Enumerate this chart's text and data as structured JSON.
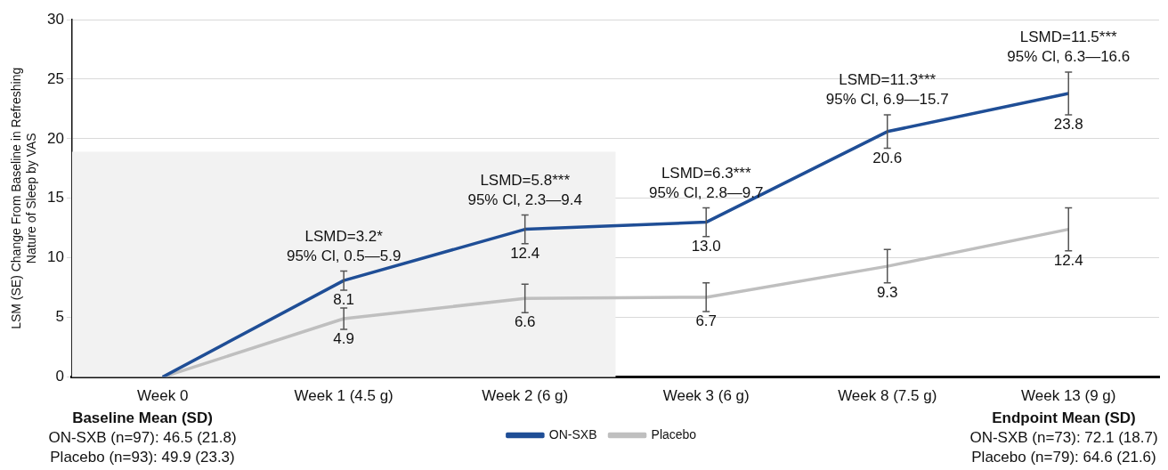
{
  "chart_data": {
    "type": "line",
    "ylabel": "LSM (SE) Change From Baseline in Refreshing Nature of Sleep by VAS",
    "categories": [
      "Week 0",
      "Week 1 (4.5 g)",
      "Week 2 (6 g)",
      "Week 3 (6 g)",
      "Week 8 (7.5 g)",
      "Week 13 (9 g)"
    ],
    "series": [
      {
        "name": "ON-SXB",
        "color": "#1f4e96",
        "values": [
          0,
          8.1,
          12.4,
          13.0,
          20.6,
          23.8
        ],
        "errors": [
          null,
          0.8,
          1.2,
          1.2,
          1.4,
          1.8
        ],
        "value_labels": [
          null,
          "8.1",
          "12.4",
          "13.0",
          "20.6",
          "23.8"
        ]
      },
      {
        "name": "Placebo",
        "color": "#bfbfbf",
        "values": [
          0,
          4.9,
          6.6,
          6.7,
          9.3,
          12.4
        ],
        "errors": [
          null,
          0.9,
          1.2,
          1.2,
          1.4,
          1.8
        ],
        "value_labels": [
          null,
          "4.9",
          "6.6",
          "6.7",
          "9.3",
          "12.4"
        ]
      }
    ],
    "ylim": [
      0,
      30
    ],
    "yticks": [
      0,
      5,
      10,
      15,
      20,
      25,
      30
    ],
    "grid": "y",
    "legend": "bottom",
    "marker": "none",
    "line_style": "solid",
    "bands": [
      {
        "axis": "x",
        "from": "Week 0",
        "to": "Week 2 (6 g)",
        "color": "#f2f2f2"
      }
    ],
    "annotations": [
      {
        "text": "LSMD=3.2*\n95% Cl, 0.5—5.9",
        "x": "Week 1 (4.5 g)",
        "y": 8.1
      },
      {
        "text": "LSMD=5.8***\n95% Cl, 2.3—9.4",
        "x": "Week 2 (6 g)",
        "y": 12.4
      },
      {
        "text": "LSMD=6.3***\n95% Cl, 2.8—9.7",
        "x": "Week 3 (6 g)",
        "y": 13.0
      },
      {
        "text": "LSMD=11.3***\n95% Cl, 6.9—15.7",
        "x": "Week 8 (7.5 g)",
        "y": 20.6
      },
      {
        "text": "LSMD=11.5***\n95% Cl, 6.3—16.6",
        "x": "Week 13 (9 g)",
        "y": 23.8
      },
      "Baseline Mean (SD)",
      "ON-SXB (n=97): 46.5 (21.8)",
      "Placebo (n=93): 49.9 (23.3)",
      "Endpoint Mean (SD)",
      "ON-SXB (n=73): 72.1 (18.7)",
      "Placebo (n=79): 64.6 (21.6)"
    ]
  }
}
